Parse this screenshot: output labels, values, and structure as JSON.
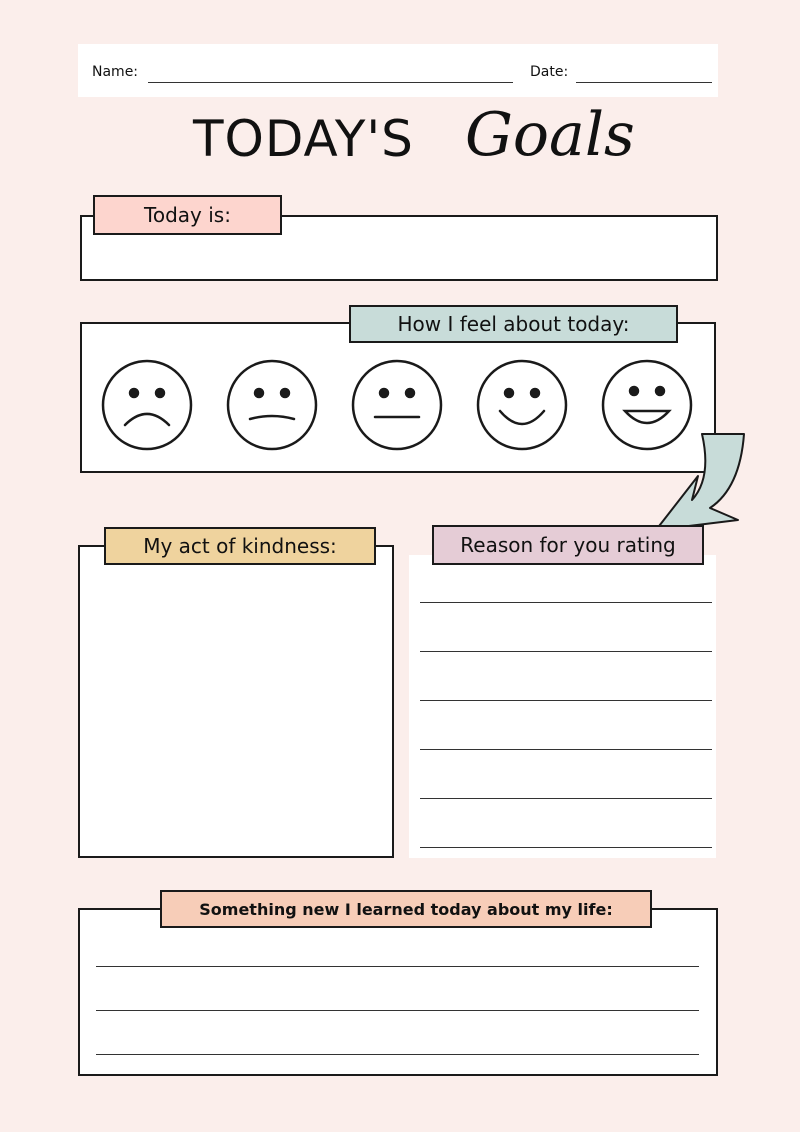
{
  "header": {
    "name_label": "Name:",
    "date_label": "Date:"
  },
  "title": {
    "main": "TODAY'S",
    "script": "Goals"
  },
  "today": {
    "label": "Today is:",
    "color": "#fdd5ce"
  },
  "feel": {
    "label": "How I feel about today:",
    "color": "#c8dcd9",
    "faces": [
      "very-sad-face-icon",
      "sad-face-icon",
      "neutral-face-icon",
      "happy-face-icon",
      "very-happy-face-icon"
    ]
  },
  "kindness": {
    "label": "My act of kindness:",
    "color": "#efd39e"
  },
  "reason": {
    "label": "Reason for you rating",
    "color": "#e5ccd6"
  },
  "learned": {
    "label": "Something new I learned today about my life:",
    "color": "#f7cdb8"
  }
}
